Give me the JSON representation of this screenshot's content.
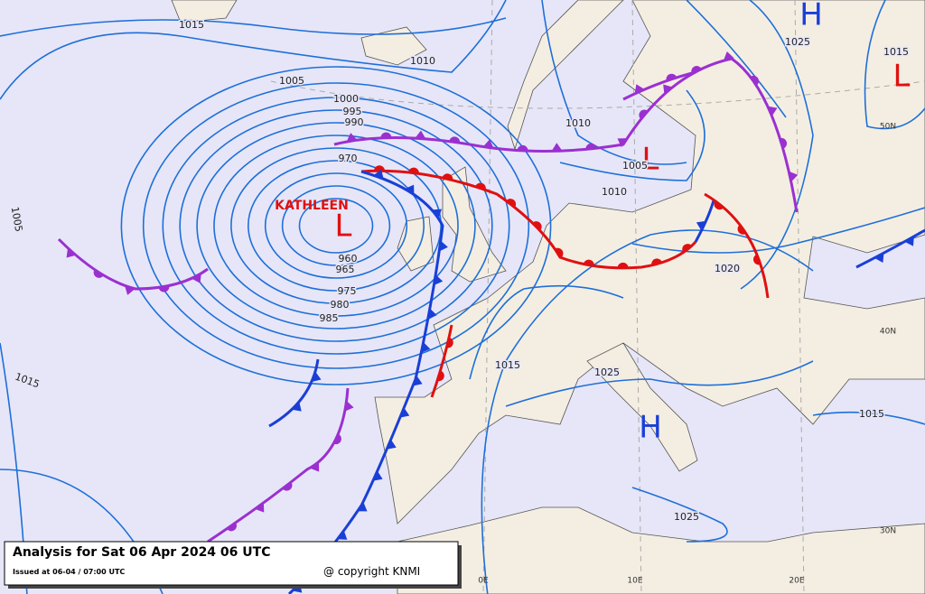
{
  "caption": {
    "title": "Analysis for Sat 06 Apr 2024 06 UTC",
    "issued": "Issued at 06-04 / 07:00 UTC",
    "copyright": "@ copyright KNMI"
  },
  "systems": [
    {
      "label": "H"
    },
    {
      "label": "L"
    },
    {
      "label": "L"
    },
    {
      "label": "L",
      "name": "KATHLEEN"
    },
    {
      "label": "H"
    }
  ],
  "isobars": [
    "1015",
    "1010",
    "1005",
    "1000",
    "995",
    "990",
    "970",
    "960",
    "965",
    "975",
    "980",
    "985",
    "1005",
    "1015",
    "1010",
    "1005",
    "1010",
    "1020",
    "1015",
    "1025",
    "1025",
    "1015",
    "1025",
    "1015"
  ],
  "graticule": [
    "50N",
    "40N",
    "30N",
    "0E",
    "10E",
    "20E"
  ]
}
